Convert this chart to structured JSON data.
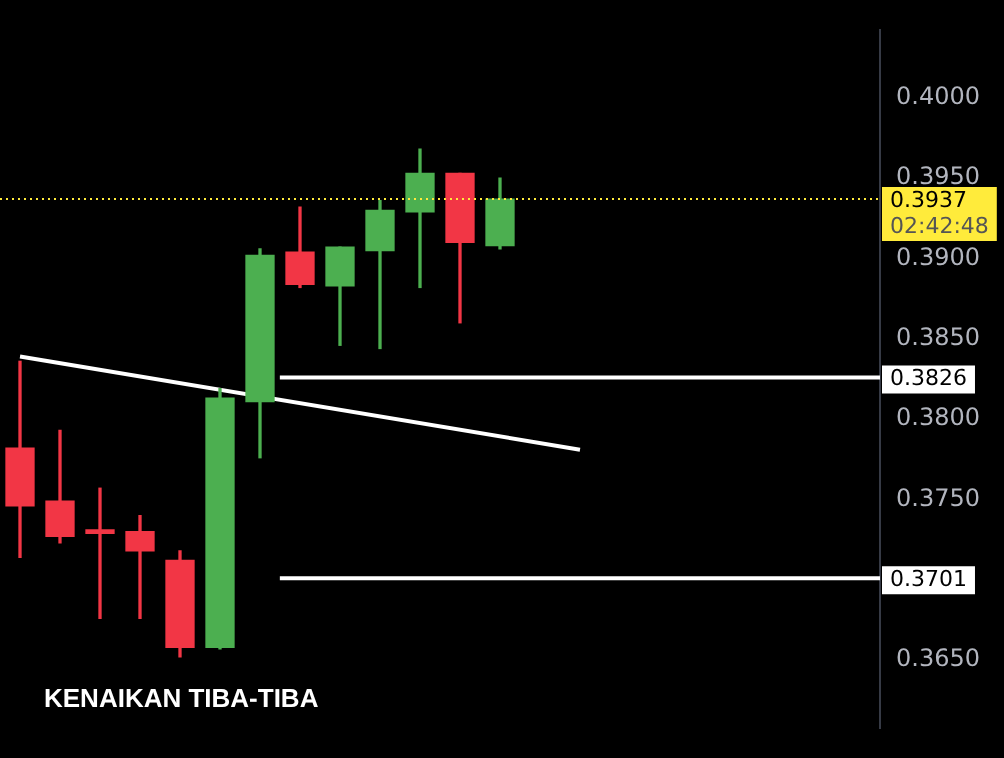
{
  "chart_data": {
    "type": "candlestick",
    "categories": [
      null,
      null,
      null,
      null,
      null,
      null,
      null,
      null,
      null,
      null,
      null,
      null,
      null,
      null,
      null,
      null,
      null,
      null,
      null,
      null,
      null,
      null
    ],
    "ohlc": [
      [
        0.3782,
        0.3836,
        0.3714,
        0.3746
      ],
      [
        0.3749,
        0.3793,
        0.3723,
        0.3727
      ],
      [
        0.3731,
        0.3757,
        0.3676,
        0.3729
      ],
      [
        0.373,
        0.374,
        0.3676,
        0.3718
      ],
      [
        0.3712,
        0.3718,
        0.3652,
        0.3658
      ],
      [
        0.3658,
        0.3819,
        0.3657,
        0.3813
      ],
      [
        0.3811,
        0.3906,
        0.3776,
        0.3902
      ],
      [
        0.3904,
        0.3932,
        0.3882,
        0.3884
      ],
      [
        0.3883,
        0.3907,
        0.3846,
        0.3907
      ],
      [
        0.3905,
        0.3936,
        0.3844,
        0.393
      ],
      [
        0.3929,
        0.3968,
        0.3882,
        0.3953
      ],
      [
        0.3953,
        0.3953,
        0.386,
        0.391
      ],
      [
        0.3908,
        0.395,
        0.3906,
        0.3937
      ],
      null,
      null,
      null,
      null,
      null,
      null,
      null,
      null,
      null
    ],
    "colors": [
      "#f23645",
      "#f23645",
      "#f23645",
      "#f23645",
      "#f23645",
      "#4caf50",
      "#4caf50",
      "#f23645",
      "#4caf50",
      "#4caf50",
      "#4caf50",
      "#f23645",
      "#4caf50",
      null,
      null,
      null,
      null,
      null,
      null,
      null,
      null,
      null
    ],
    "series": [
      {
        "type": "line",
        "color": "#ffffff",
        "values": [
          0.3839,
          null,
          null,
          null,
          null,
          null,
          null,
          null,
          null,
          null,
          null,
          null,
          null,
          null,
          0.3781,
          null,
          null,
          null,
          null,
          null,
          null,
          null
        ]
      }
    ],
    "ylim": [
      0.3608,
      0.4042
    ],
    "yticks": [
      {
        "value": 0.365,
        "label": "0.3650"
      },
      {
        "value": 0.375,
        "label": "0.3750"
      },
      {
        "value": 0.38,
        "label": "0.3800"
      },
      {
        "value": 0.385,
        "label": "0.3850"
      },
      {
        "value": 0.39,
        "label": "0.3900"
      },
      {
        "value": 0.395,
        "label": "0.3950"
      },
      {
        "value": 0.4,
        "label": "0.4000"
      }
    ],
    "tick_labels": "y",
    "ref_lines": [
      {
        "axis": "y",
        "value": 0.3826,
        "label": "0.3826",
        "color": "#ffffff"
      },
      {
        "axis": "y",
        "value": 0.3701,
        "label": "0.3701",
        "color": "#ffffff"
      },
      {
        "axis": "y",
        "value": 0.3937,
        "label": "0.3937",
        "color": "#ffeb3b",
        "line_style": "dotted"
      }
    ],
    "annotations": [
      "KENAIKAN TIBA-TIBA",
      "02:42:48"
    ]
  }
}
